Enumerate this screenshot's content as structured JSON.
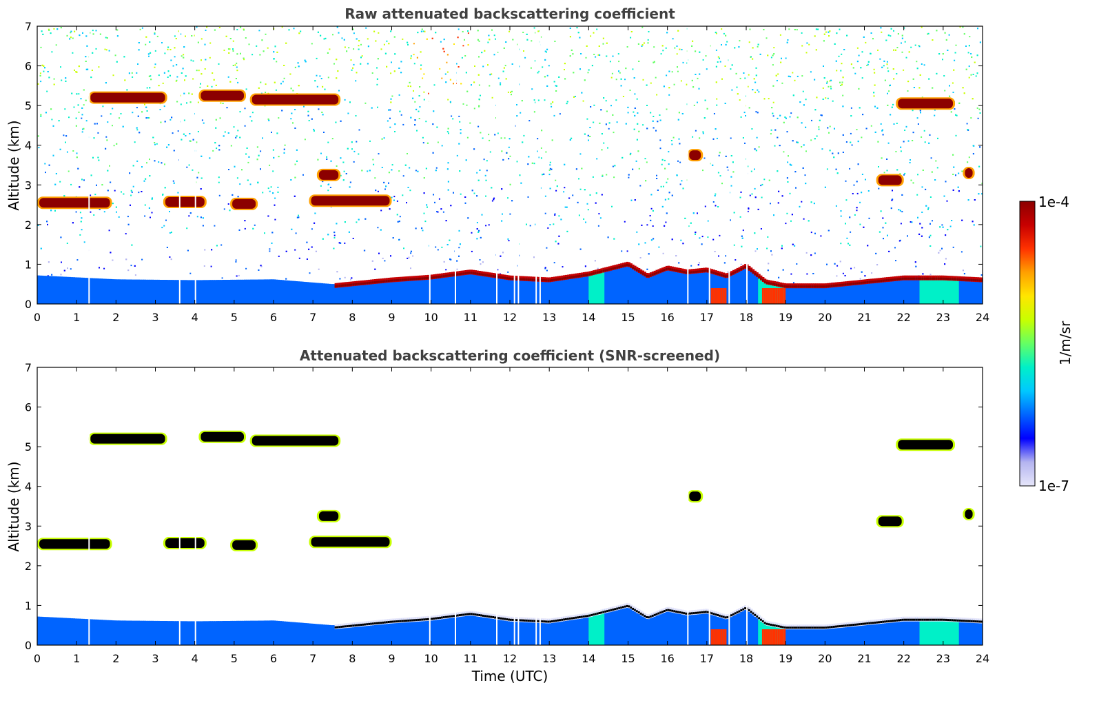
{
  "chart_data": [
    {
      "type": "heatmap",
      "title": "Raw attenuated backscattering coefficient",
      "xlabel": "",
      "ylabel": "Altitude (km)",
      "xlim": [
        0,
        24
      ],
      "ylim": [
        0,
        7
      ],
      "xticks": [
        "0",
        "1",
        "2",
        "3",
        "4",
        "5",
        "6",
        "7",
        "8",
        "9",
        "10",
        "11",
        "12",
        "13",
        "14",
        "15",
        "16",
        "17",
        "18",
        "19",
        "20",
        "21",
        "22",
        "23",
        "24"
      ],
      "yticks": [
        "0",
        "1",
        "2",
        "3",
        "4",
        "5",
        "6",
        "7"
      ],
      "noise_field": "speckled background, higher signal in the upper range, strong near the surface",
      "boundary_layer_top_km": [
        [
          0,
          0.72
        ],
        [
          2,
          0.62
        ],
        [
          4,
          0.6
        ],
        [
          6,
          0.62
        ],
        [
          7.5,
          0.5
        ],
        [
          8,
          0.55
        ],
        [
          9,
          0.65
        ],
        [
          10,
          0.72
        ],
        [
          11,
          0.85
        ],
        [
          12,
          0.7
        ],
        [
          13,
          0.65
        ],
        [
          14,
          0.8
        ],
        [
          15,
          1.05
        ],
        [
          15.5,
          0.75
        ],
        [
          16,
          0.95
        ],
        [
          16.5,
          0.85
        ],
        [
          17,
          0.9
        ],
        [
          17.5,
          0.75
        ],
        [
          18,
          1.0
        ],
        [
          18.5,
          0.6
        ],
        [
          19,
          0.5
        ],
        [
          20,
          0.5
        ],
        [
          21,
          0.6
        ],
        [
          22,
          0.7
        ],
        [
          23,
          0.7
        ],
        [
          24,
          0.65
        ]
      ],
      "cloud_layers": [
        {
          "x0": 1.3,
          "x1": 3.3,
          "y": 5.2
        },
        {
          "x0": 4.1,
          "x1": 5.3,
          "y": 5.25
        },
        {
          "x0": 5.4,
          "x1": 7.7,
          "y": 5.15
        },
        {
          "x0": 0.0,
          "x1": 1.9,
          "y": 2.55
        },
        {
          "x0": 3.2,
          "x1": 4.3,
          "y": 2.57
        },
        {
          "x0": 4.9,
          "x1": 5.6,
          "y": 2.52
        },
        {
          "x0": 6.9,
          "x1": 9.0,
          "y": 2.6
        },
        {
          "x0": 7.1,
          "x1": 7.7,
          "y": 3.25
        },
        {
          "x0": 16.5,
          "x1": 16.9,
          "y": 3.75
        },
        {
          "x0": 21.3,
          "x1": 22.0,
          "y": 3.12
        },
        {
          "x0": 21.8,
          "x1": 23.3,
          "y": 5.05
        },
        {
          "x0": 23.5,
          "x1": 23.8,
          "y": 3.3
        }
      ],
      "gap_times": [
        1.3,
        3.6,
        4.0,
        9.95,
        10.6,
        11.65,
        12.1,
        12.2,
        12.65,
        12.75,
        16.5,
        17.05,
        17.55,
        18.0
      ]
    },
    {
      "type": "heatmap",
      "title": "Attenuated backscattering coefficient (SNR-screened)",
      "xlabel": "Time (UTC)",
      "ylabel": "Altitude (km)",
      "xlim": [
        0,
        24
      ],
      "ylim": [
        0,
        7
      ],
      "xticks": [
        "0",
        "1",
        "2",
        "3",
        "4",
        "5",
        "6",
        "7",
        "8",
        "9",
        "10",
        "11",
        "12",
        "13",
        "14",
        "15",
        "16",
        "17",
        "18",
        "19",
        "20",
        "21",
        "22",
        "23",
        "24"
      ],
      "yticks": [
        "0",
        "1",
        "2",
        "3",
        "4",
        "5",
        "6",
        "7"
      ],
      "noise_field": "screened out (white)",
      "saturated_color": "#000000"
    }
  ],
  "colorbar": {
    "label": "1/m/sr",
    "max_label": "1e-4",
    "min_label": "1e-7",
    "scale": "log",
    "colors": [
      "#e6e6fa",
      "#b4b4f0",
      "#0000ff",
      "#0064ff",
      "#00c8ff",
      "#00f0c8",
      "#64ff64",
      "#c8ff00",
      "#ffe600",
      "#ffa000",
      "#ff3200",
      "#c80000",
      "#8c0000"
    ]
  }
}
